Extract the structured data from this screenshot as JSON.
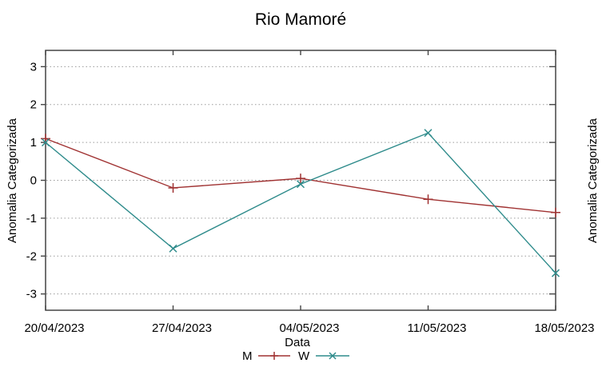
{
  "window": {
    "background": "#ffffff"
  },
  "chart_data": {
    "type": "line",
    "title": "Rio Mamoré",
    "xlabel": "Data",
    "ylabel": "Anomalia Categorizada",
    "categories": [
      "20/04/2023",
      "27/04/2023",
      "04/05/2023",
      "11/05/2023",
      "18/05/2023"
    ],
    "y_ticks": [
      3,
      2,
      1,
      0,
      -1,
      -2,
      -3
    ],
    "ylim": [
      -3.43,
      3.43
    ],
    "grid": true,
    "grid_style": "dotted",
    "legend_position": "below-center",
    "series": [
      {
        "name": "M",
        "color": "#a03232",
        "marker": "plus",
        "values": [
          1.1,
          -0.2,
          0.05,
          -0.5,
          -0.85
        ]
      },
      {
        "name": "W",
        "color": "#2e8b8b",
        "marker": "cross",
        "values": [
          1.0,
          -1.8,
          -0.1,
          1.25,
          -2.45
        ]
      }
    ]
  },
  "adjacent_chart": {
    "ylabel": "Anomalia Categorizada"
  },
  "colors": {
    "grid": "#9a9a9a",
    "border": "#444444",
    "text": "#000000"
  }
}
